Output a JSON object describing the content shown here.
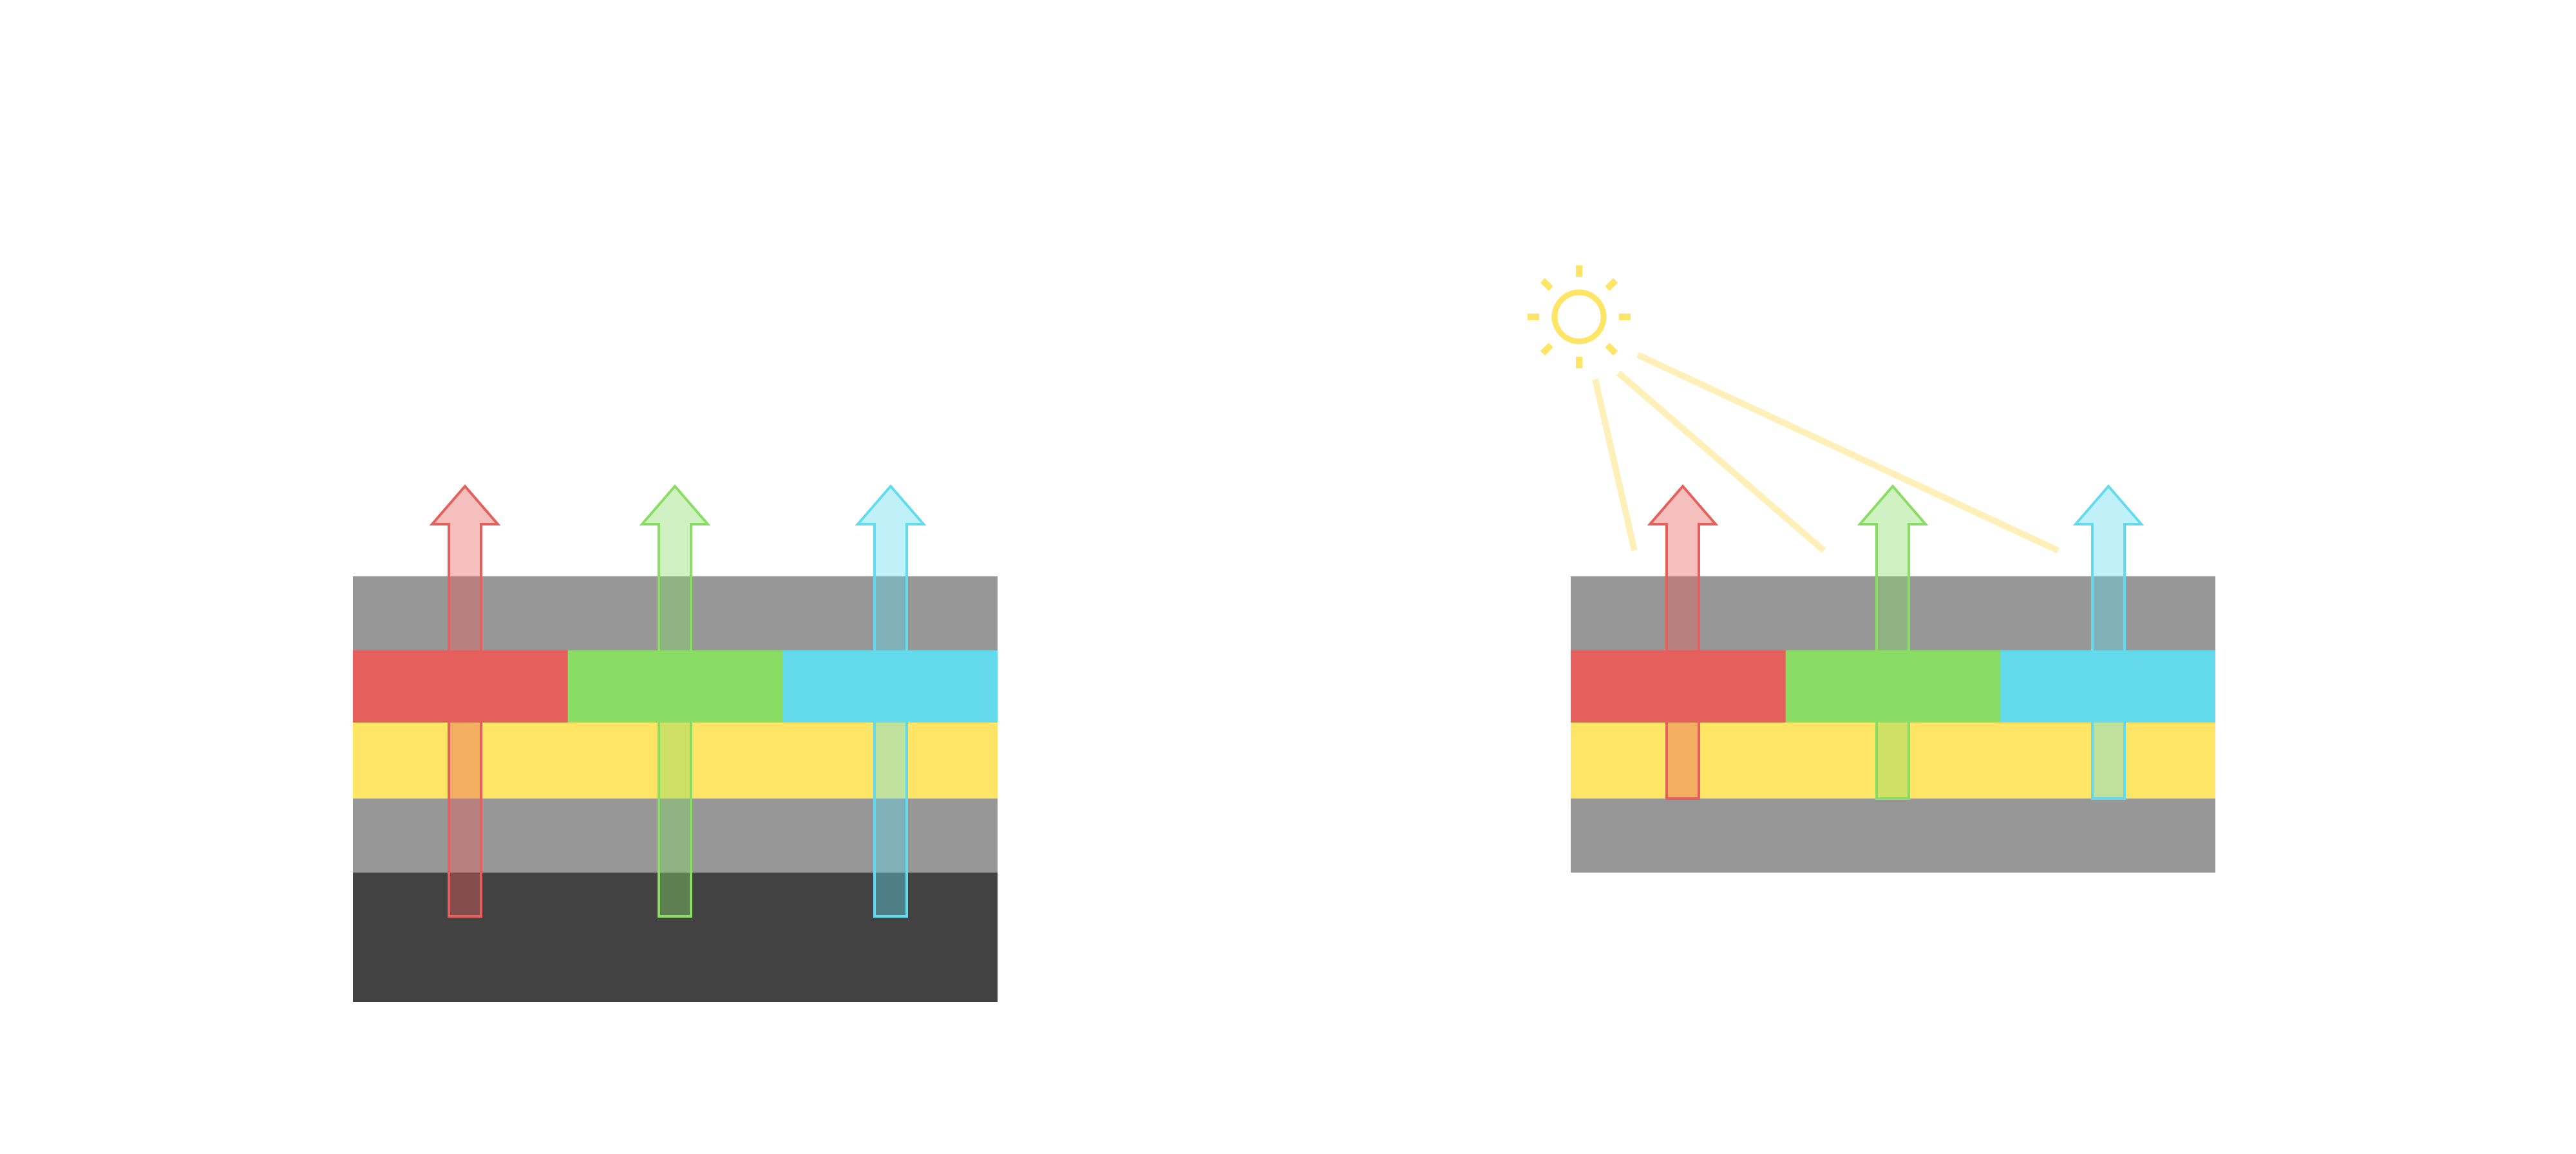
{
  "colors": {
    "background": "#ffffff",
    "layer_gray": "#979797",
    "layer_dark": "#424242",
    "layer_yellow": "#fee566",
    "filter_red": "#e5605c",
    "filter_green": "#89dd64",
    "filter_cyan": "#63dbed",
    "arrow_red": "#e5605c",
    "arrow_green": "#89dd64",
    "arrow_cyan": "#63dbed",
    "sun": "#fee566",
    "light_ray": "#fef0b8"
  },
  "panels": [
    {
      "icon": "emissive-display-stack",
      "has_backlight_layer": true,
      "has_sun": false
    },
    {
      "icon": "reflective-display-stack",
      "has_backlight_layer": false,
      "has_sun": true
    }
  ]
}
